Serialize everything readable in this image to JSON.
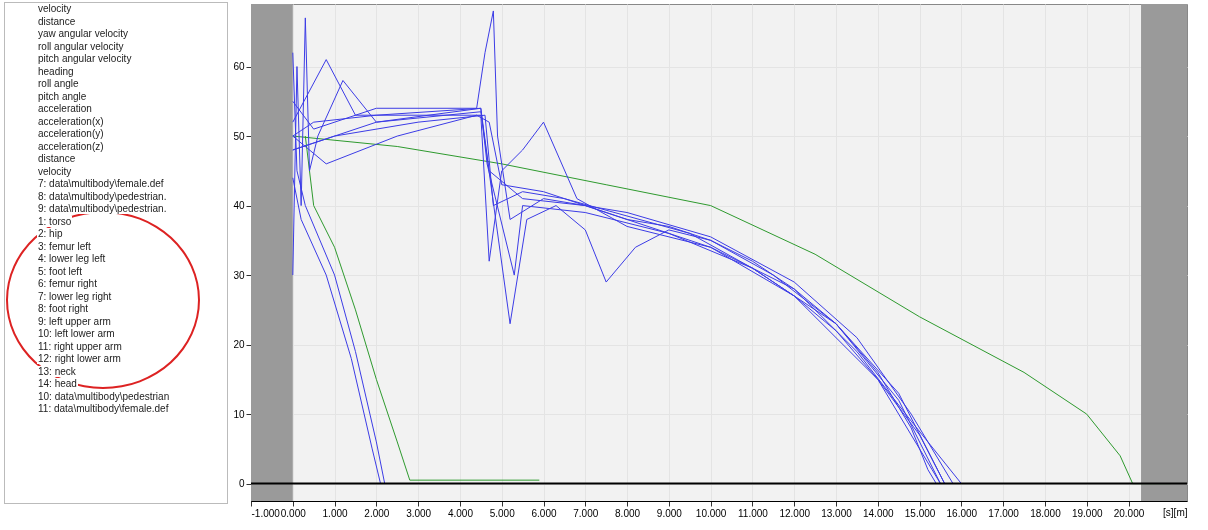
{
  "chart_data": {
    "type": "line",
    "xlabel": "[s][m]",
    "xlim": [
      -1,
      21.4
    ],
    "ylim": [
      -2.5,
      69
    ],
    "xticks": [
      {
        "value": -1,
        "label": "-1.000"
      },
      {
        "value": 0,
        "label": "0.000"
      },
      {
        "value": 1,
        "label": "1.000"
      },
      {
        "value": 2,
        "label": "2.000"
      },
      {
        "value": 3,
        "label": "3.000"
      },
      {
        "value": 4,
        "label": "4.000"
      },
      {
        "value": 5,
        "label": "5.000"
      },
      {
        "value": 6,
        "label": "6.000"
      },
      {
        "value": 7,
        "label": "7.000"
      },
      {
        "value": 8,
        "label": "8.000"
      },
      {
        "value": 9,
        "label": "9.000"
      },
      {
        "value": 10,
        "label": "10.000"
      },
      {
        "value": 11,
        "label": "11.000"
      },
      {
        "value": 12,
        "label": "12.000"
      },
      {
        "value": 13,
        "label": "13.000"
      },
      {
        "value": 14,
        "label": "14.000"
      },
      {
        "value": 15,
        "label": "15.000"
      },
      {
        "value": 16,
        "label": "16.000"
      },
      {
        "value": 17,
        "label": "17.000"
      },
      {
        "value": 18,
        "label": "18.000"
      },
      {
        "value": 19,
        "label": "19.000"
      },
      {
        "value": 20,
        "label": "20.000"
      }
    ],
    "yticks": [
      0,
      10,
      20,
      30,
      40,
      50,
      60
    ],
    "grid": true,
    "line_style": "solid",
    "bands": [
      {
        "axis": "x",
        "from": -1,
        "to": 0,
        "color": "#9a9a9a"
      },
      {
        "axis": "x",
        "from": 20.3,
        "to": 21.4,
        "color": "#9a9a9a"
      }
    ],
    "ref_lines": [
      {
        "axis": "y",
        "value": 0,
        "color": "#000000"
      }
    ],
    "series": [
      {
        "color": "#2e9a2e",
        "x": [
          0,
          2.5,
          5,
          7.5,
          10,
          12.5,
          15,
          17.5,
          19,
          19.8,
          20.1,
          21
        ],
        "values": [
          50,
          48.5,
          46,
          43,
          40,
          33,
          24,
          16,
          10,
          4,
          0,
          0
        ]
      },
      {
        "color": "#2e9a2e",
        "x": [
          0.3,
          0.5,
          1,
          1.5,
          2,
          2.5,
          2.8,
          5.9
        ],
        "values": [
          50,
          40,
          34,
          25,
          15,
          6,
          0.5,
          0.5
        ]
      },
      {
        "color": "#3c3ce6",
        "x": [
          0,
          0.5,
          2,
          4.5,
          4.7,
          5.5,
          7,
          8,
          9,
          10,
          11,
          12,
          13,
          14,
          14.8,
          15.2,
          15.4
        ],
        "values": [
          50,
          52,
          53,
          54,
          45,
          41,
          40,
          38,
          37,
          35,
          32,
          28,
          23,
          16,
          8,
          2,
          0
        ]
      },
      {
        "color": "#3c3ce6",
        "x": [
          0,
          1,
          3,
          4.6,
          4.8,
          5.5,
          6.5,
          8,
          9.5,
          11,
          12,
          13,
          14,
          15,
          15.6
        ],
        "values": [
          48,
          50,
          52,
          53,
          40,
          42,
          41,
          38.5,
          36,
          31,
          27,
          22,
          15,
          7,
          0
        ]
      },
      {
        "color": "#3c3ce6",
        "x": [
          0,
          0.5,
          2,
          4.4,
          4.6,
          4.8,
          4.9,
          5.2,
          6,
          8,
          10,
          12,
          13.5,
          14.8,
          15.8
        ],
        "values": [
          55,
          51,
          54,
          54,
          62,
          68,
          50,
          38,
          41,
          39,
          35.5,
          29,
          21,
          10,
          0
        ]
      },
      {
        "color": "#3c3ce6",
        "x": [
          0,
          0.8,
          1.5,
          4.5,
          4.7,
          5,
          5.5,
          6,
          6.8,
          8,
          10,
          12,
          13.5,
          14.8,
          16
        ],
        "values": [
          52,
          61,
          53,
          53,
          32,
          45,
          48,
          52,
          41,
          37,
          34,
          28,
          19,
          9,
          0
        ]
      },
      {
        "color": "#3c3ce6",
        "x": [
          0,
          2,
          4.5,
          5.2,
          5.6,
          6.3,
          7,
          7.5,
          8.2,
          9,
          10,
          11.5,
          13,
          14.5,
          15.5
        ],
        "values": [
          48,
          52,
          53.5,
          23,
          38,
          40,
          36.5,
          29,
          34,
          36.5,
          35,
          30,
          23,
          12,
          0
        ]
      },
      {
        "color": "#3c3ce6",
        "x": [
          0,
          0.8,
          2.5,
          4.4,
          4.7,
          5,
          6,
          8,
          10,
          12,
          14,
          15.3,
          15.5
        ],
        "values": [
          50,
          46,
          50,
          53,
          52,
          43,
          42,
          38,
          34,
          27,
          15,
          2,
          0
        ]
      },
      {
        "color": "#3c3ce6",
        "x": [
          0,
          0.1,
          0.3,
          1,
          1.5,
          2,
          2.2
        ],
        "values": [
          62,
          45,
          40,
          30,
          19,
          6,
          0
        ]
      },
      {
        "color": "#3c3ce6",
        "x": [
          0,
          0.2,
          0.8,
          1.4,
          1.9,
          2.1
        ],
        "values": [
          44,
          38,
          30,
          18,
          5,
          0
        ]
      },
      {
        "color": "#3c3ce6",
        "x": [
          0,
          0.1,
          0.2,
          0.3,
          0.4,
          0.6,
          1.2,
          2,
          4.5,
          4.65,
          5.3,
          5.5,
          7,
          9,
          11,
          13,
          14.5,
          15.6
        ],
        "values": [
          30,
          60,
          40,
          67,
          45,
          50,
          58,
          52,
          54,
          46,
          30,
          40,
          39,
          36,
          31,
          23,
          13,
          0
        ]
      }
    ],
    "annotations": [
      "velocity",
      "distance",
      "yaw angular velocity",
      "roll angular velocity",
      "pitch angular velocity",
      "heading",
      "roll angle",
      "pitch angle",
      "acceleration",
      "acceleration(x)",
      "acceleration(y)",
      "acceleration(z)",
      "distance",
      "velocity",
      "7: data\\multibody\\female.def",
      "8: data\\multibody\\pedestrian.",
      "9: data\\multibody\\pedestrian.",
      "1: torso",
      "2: hip",
      "3: femur left",
      "4: lower leg left",
      "5: foot left",
      "6: femur right",
      "7: lower leg right",
      "8: foot right",
      "9: left upper arm",
      "10: left lower arm",
      "11: right upper arm",
      "12: right lower arm",
      "13: neck",
      "14: head",
      "10: data\\multibody\\pedestrian",
      "11: data\\multibody\\female.def"
    ]
  }
}
